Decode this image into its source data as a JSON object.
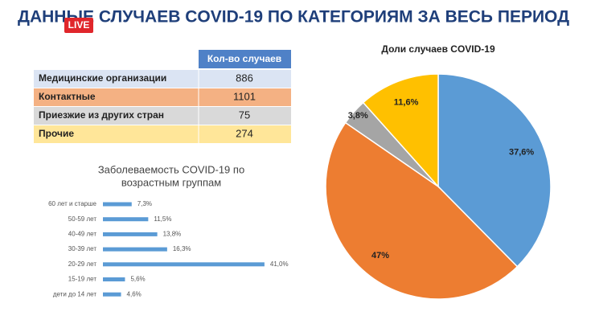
{
  "header": {
    "title": "ДАННЫЕ СЛУЧАЕВ COVID-19 ПО КАТЕГОРИЯМ ЗА ВЕСЬ ПЕРИОД",
    "badge": "LIVE"
  },
  "table": {
    "header": "Кол-во случаев",
    "rows": [
      [
        "Медицинские организации",
        886
      ],
      [
        "Контактные",
        1101
      ],
      [
        "Приезжие из других стран",
        75
      ],
      [
        "Прочие",
        274
      ]
    ]
  },
  "chart_data": [
    {
      "type": "bar",
      "orientation": "horizontal",
      "title": [
        "Заболеваемость COVID-19 по",
        "возрастным группам"
      ],
      "categories": [
        "60 лет и старше",
        "50-59 лет",
        "40-49 лет",
        "30-39 лет",
        "20-29 лет",
        "15-19 лет",
        "дети до 14 лет"
      ],
      "values": [
        7.3,
        11.5,
        13.8,
        16.3,
        41.0,
        5.6,
        4.6
      ],
      "value_labels": [
        "7,3%",
        "11,5%",
        "13,8%",
        "16,3%",
        "41,0%",
        "5,6%",
        "4,6%"
      ],
      "color": "#5b9bd5"
    },
    {
      "type": "pie",
      "title": "Доли случаев COVID-19",
      "values": [
        37.6,
        47,
        3.8,
        11.6
      ],
      "value_labels": [
        "37,6%",
        "47%",
        "3,8%",
        "11,6%"
      ],
      "colors": [
        "#5b9bd5",
        "#ed7d31",
        "#a5a5a5",
        "#ffc000"
      ]
    }
  ]
}
